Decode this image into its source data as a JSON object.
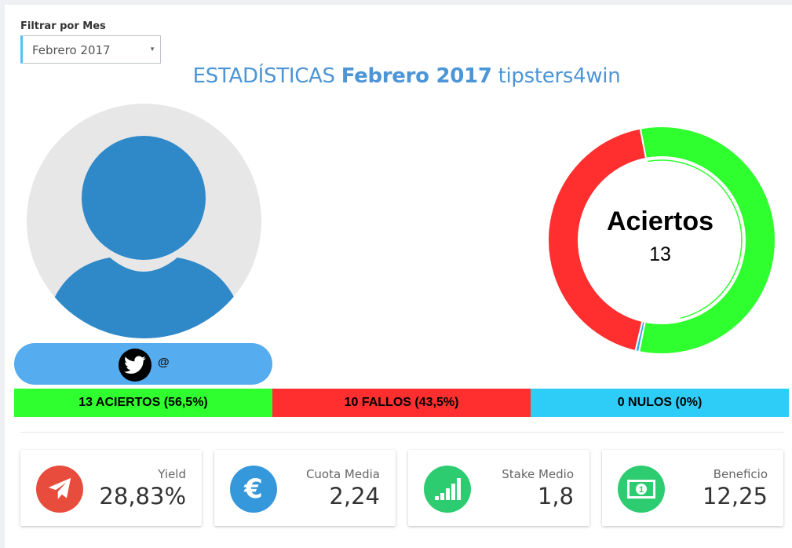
{
  "filter": {
    "label": "Filtrar por Mes",
    "selected": "Febrero 2017"
  },
  "title": {
    "prefix": "ESTADÍSTICAS",
    "month": "Febrero 2017",
    "site": "tipsters4win"
  },
  "profile": {
    "twitter_handle": "@"
  },
  "donut": {
    "center_label": "Aciertos",
    "center_value": "13",
    "segments": [
      {
        "name": "aciertos",
        "value": 13,
        "color": "#2fff2f"
      },
      {
        "name": "nulos",
        "value": 0.12,
        "color": "#39a6e6"
      },
      {
        "name": "fallos",
        "value": 10,
        "color": "#ff2f2f"
      }
    ]
  },
  "summary": {
    "aciertos": "13 ACIERTOS (56,5%)",
    "fallos": "10 FALLOS (43,5%)",
    "nulos": "0 NULOS (0%)"
  },
  "cards": [
    {
      "label": "Yield",
      "value": "28,83%",
      "icon": "paper-plane-icon",
      "color": "#e74c3c"
    },
    {
      "label": "Cuota Media",
      "value": "2,24",
      "icon": "euro-icon",
      "color": "#3498db"
    },
    {
      "label": "Stake Medio",
      "value": "1,8",
      "icon": "signal-bars-icon",
      "color": "#2ecc71"
    },
    {
      "label": "Beneficio",
      "value": "12,25",
      "icon": "money-bill-icon",
      "color": "#2ecc71"
    }
  ],
  "colors": {
    "accent": "#4c95d6",
    "twitter": "#55acee",
    "aciertos": "#2fff2f",
    "fallos": "#ff2f2f",
    "nulos": "#2ecdf7"
  }
}
